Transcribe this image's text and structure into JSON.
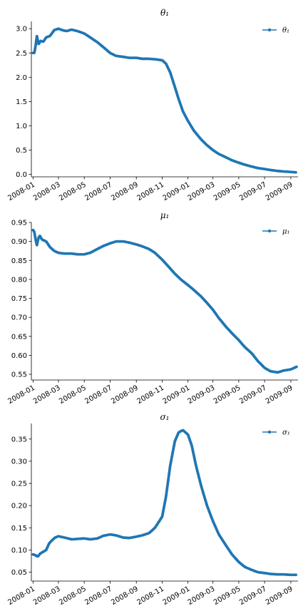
{
  "chart_data": [
    {
      "type": "line",
      "title": "θ₁",
      "series": [
        {
          "name": "θ₁",
          "color": "#1f77b4",
          "points": [
            [
              "2008-01-01",
              2.5
            ],
            [
              "2008-01-04",
              2.5
            ],
            [
              "2008-01-07",
              2.65
            ],
            [
              "2008-01-10",
              2.85
            ],
            [
              "2008-01-14",
              2.68
            ],
            [
              "2008-01-19",
              2.75
            ],
            [
              "2008-01-25",
              2.73
            ],
            [
              "2008-02-01",
              2.82
            ],
            [
              "2008-02-10",
              2.85
            ],
            [
              "2008-02-20",
              2.97
            ],
            [
              "2008-03-01",
              3.0
            ],
            [
              "2008-03-10",
              2.97
            ],
            [
              "2008-03-20",
              2.95
            ],
            [
              "2008-04-01",
              2.98
            ],
            [
              "2008-04-15",
              2.95
            ],
            [
              "2008-05-01",
              2.9
            ],
            [
              "2008-05-15",
              2.82
            ],
            [
              "2008-06-01",
              2.72
            ],
            [
              "2008-06-15",
              2.62
            ],
            [
              "2008-07-01",
              2.5
            ],
            [
              "2008-07-15",
              2.44
            ],
            [
              "2008-08-01",
              2.42
            ],
            [
              "2008-08-15",
              2.4
            ],
            [
              "2008-09-01",
              2.4
            ],
            [
              "2008-09-15",
              2.38
            ],
            [
              "2008-10-01",
              2.38
            ],
            [
              "2008-10-15",
              2.37
            ],
            [
              "2008-11-01",
              2.35
            ],
            [
              "2008-11-10",
              2.28
            ],
            [
              "2008-11-20",
              2.1
            ],
            [
              "2008-12-01",
              1.8
            ],
            [
              "2008-12-10",
              1.55
            ],
            [
              "2008-12-20",
              1.3
            ],
            [
              "2009-01-01",
              1.1
            ],
            [
              "2009-01-15",
              0.9
            ],
            [
              "2009-02-01",
              0.72
            ],
            [
              "2009-02-15",
              0.6
            ],
            [
              "2009-03-01",
              0.5
            ],
            [
              "2009-03-15",
              0.42
            ],
            [
              "2009-04-01",
              0.35
            ],
            [
              "2009-04-15",
              0.29
            ],
            [
              "2009-05-01",
              0.24
            ],
            [
              "2009-05-15",
              0.2
            ],
            [
              "2009-06-01",
              0.16
            ],
            [
              "2009-06-15",
              0.13
            ],
            [
              "2009-07-01",
              0.11
            ],
            [
              "2009-07-15",
              0.09
            ],
            [
              "2009-08-01",
              0.07
            ],
            [
              "2009-08-15",
              0.06
            ],
            [
              "2009-09-01",
              0.05
            ],
            [
              "2009-09-15",
              0.04
            ]
          ]
        }
      ],
      "xlim": [
        "2007-12-28",
        "2009-09-18"
      ],
      "ylim": [
        -0.05,
        3.15
      ],
      "y_ticks": [
        "0.0",
        "0.5",
        "1.0",
        "1.5",
        "2.0",
        "2.5",
        "3.0"
      ],
      "x_ticks": [
        "2008-01",
        "2008-03",
        "2008-05",
        "2008-07",
        "2008-09",
        "2008-11",
        "2009-01",
        "2009-03",
        "2009-05",
        "2009-07",
        "2009-09"
      ],
      "legend_position": "top-right"
    },
    {
      "type": "line",
      "title": "μ₁",
      "series": [
        {
          "name": "μ₁",
          "color": "#1f77b4",
          "points": [
            [
              "2008-01-01",
              0.93
            ],
            [
              "2008-01-04",
              0.925
            ],
            [
              "2008-01-07",
              0.905
            ],
            [
              "2008-01-10",
              0.89
            ],
            [
              "2008-01-14",
              0.91
            ],
            [
              "2008-01-17",
              0.915
            ],
            [
              "2008-01-22",
              0.905
            ],
            [
              "2008-02-01",
              0.9
            ],
            [
              "2008-02-10",
              0.885
            ],
            [
              "2008-02-20",
              0.875
            ],
            [
              "2008-03-01",
              0.87
            ],
            [
              "2008-03-15",
              0.868
            ],
            [
              "2008-04-01",
              0.868
            ],
            [
              "2008-04-15",
              0.866
            ],
            [
              "2008-05-01",
              0.866
            ],
            [
              "2008-05-15",
              0.87
            ],
            [
              "2008-06-01",
              0.88
            ],
            [
              "2008-06-15",
              0.888
            ],
            [
              "2008-07-01",
              0.895
            ],
            [
              "2008-07-15",
              0.9
            ],
            [
              "2008-08-01",
              0.9
            ],
            [
              "2008-08-15",
              0.897
            ],
            [
              "2008-09-01",
              0.892
            ],
            [
              "2008-09-15",
              0.887
            ],
            [
              "2008-10-01",
              0.88
            ],
            [
              "2008-10-15",
              0.87
            ],
            [
              "2008-11-01",
              0.852
            ],
            [
              "2008-11-15",
              0.835
            ],
            [
              "2008-12-01",
              0.815
            ],
            [
              "2008-12-15",
              0.8
            ],
            [
              "2009-01-01",
              0.785
            ],
            [
              "2009-01-15",
              0.772
            ],
            [
              "2009-02-01",
              0.755
            ],
            [
              "2009-02-15",
              0.738
            ],
            [
              "2009-03-01",
              0.72
            ],
            [
              "2009-03-15",
              0.698
            ],
            [
              "2009-04-01",
              0.675
            ],
            [
              "2009-04-15",
              0.658
            ],
            [
              "2009-05-01",
              0.64
            ],
            [
              "2009-05-15",
              0.622
            ],
            [
              "2009-06-01",
              0.605
            ],
            [
              "2009-06-15",
              0.585
            ],
            [
              "2009-07-01",
              0.567
            ],
            [
              "2009-07-15",
              0.558
            ],
            [
              "2009-08-01",
              0.555
            ],
            [
              "2009-08-15",
              0.56
            ],
            [
              "2009-09-01",
              0.563
            ],
            [
              "2009-09-15",
              0.57
            ]
          ]
        }
      ],
      "xlim": [
        "2007-12-28",
        "2009-09-18"
      ],
      "ylim": [
        0.535,
        0.95
      ],
      "y_ticks": [
        "0.55",
        "0.60",
        "0.65",
        "0.70",
        "0.75",
        "0.80",
        "0.85",
        "0.90",
        "0.95"
      ],
      "x_ticks": [
        "2008-01",
        "2008-03",
        "2008-05",
        "2008-07",
        "2008-09",
        "2008-11",
        "2009-01",
        "2009-03",
        "2009-05",
        "2009-07",
        "2009-09"
      ],
      "legend_position": "top-right"
    },
    {
      "type": "line",
      "title": "σ₁",
      "series": [
        {
          "name": "σ₁",
          "color": "#1f77b4",
          "points": [
            [
              "2008-01-01",
              0.09
            ],
            [
              "2008-01-07",
              0.088
            ],
            [
              "2008-01-12",
              0.085
            ],
            [
              "2008-01-18",
              0.092
            ],
            [
              "2008-01-25",
              0.096
            ],
            [
              "2008-02-01",
              0.1
            ],
            [
              "2008-02-08",
              0.115
            ],
            [
              "2008-02-15",
              0.122
            ],
            [
              "2008-02-22",
              0.128
            ],
            [
              "2008-03-01",
              0.131
            ],
            [
              "2008-03-15",
              0.128
            ],
            [
              "2008-04-01",
              0.124
            ],
            [
              "2008-04-15",
              0.125
            ],
            [
              "2008-05-01",
              0.126
            ],
            [
              "2008-05-15",
              0.124
            ],
            [
              "2008-06-01",
              0.126
            ],
            [
              "2008-06-15",
              0.132
            ],
            [
              "2008-07-01",
              0.135
            ],
            [
              "2008-07-15",
              0.133
            ],
            [
              "2008-08-01",
              0.128
            ],
            [
              "2008-08-15",
              0.127
            ],
            [
              "2008-09-01",
              0.13
            ],
            [
              "2008-09-15",
              0.133
            ],
            [
              "2008-10-01",
              0.138
            ],
            [
              "2008-10-15",
              0.15
            ],
            [
              "2008-11-01",
              0.175
            ],
            [
              "2008-11-10",
              0.22
            ],
            [
              "2008-11-20",
              0.29
            ],
            [
              "2008-12-01",
              0.345
            ],
            [
              "2008-12-10",
              0.365
            ],
            [
              "2008-12-20",
              0.37
            ],
            [
              "2009-01-01",
              0.36
            ],
            [
              "2009-01-10",
              0.335
            ],
            [
              "2009-01-20",
              0.29
            ],
            [
              "2009-02-01",
              0.245
            ],
            [
              "2009-02-15",
              0.2
            ],
            [
              "2009-03-01",
              0.165
            ],
            [
              "2009-03-15",
              0.135
            ],
            [
              "2009-04-01",
              0.11
            ],
            [
              "2009-04-15",
              0.09
            ],
            [
              "2009-05-01",
              0.073
            ],
            [
              "2009-05-15",
              0.062
            ],
            [
              "2009-06-01",
              0.055
            ],
            [
              "2009-06-15",
              0.05
            ],
            [
              "2009-07-01",
              0.048
            ],
            [
              "2009-07-15",
              0.046
            ],
            [
              "2009-08-01",
              0.045
            ],
            [
              "2009-08-15",
              0.045
            ],
            [
              "2009-09-01",
              0.044
            ],
            [
              "2009-09-15",
              0.044
            ]
          ]
        }
      ],
      "xlim": [
        "2007-12-28",
        "2009-09-18"
      ],
      "ylim": [
        0.03,
        0.385
      ],
      "y_ticks": [
        "0.05",
        "0.10",
        "0.15",
        "0.20",
        "0.25",
        "0.30",
        "0.35"
      ],
      "x_ticks": [
        "2008-01",
        "2008-03",
        "2008-05",
        "2008-07",
        "2008-09",
        "2008-11",
        "2009-01",
        "2009-03",
        "2009-05",
        "2009-07",
        "2009-09"
      ],
      "legend_position": "top-right"
    }
  ]
}
